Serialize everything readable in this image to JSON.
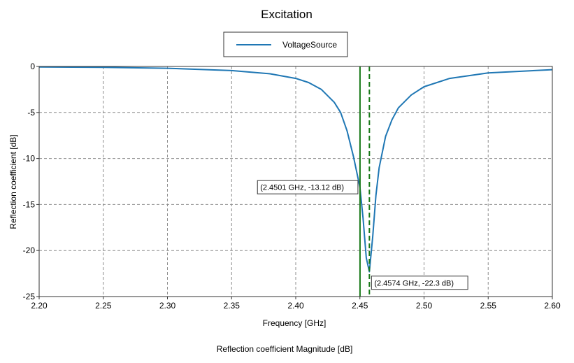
{
  "chart_data": {
    "type": "line",
    "title": "Excitation",
    "xlabel": "Frequency [GHz]",
    "ylabel": "Reflection coefficient [dB]",
    "footer": "Reflection coefficient Magnitude [dB]",
    "xlim": [
      2.2,
      2.6
    ],
    "ylim": [
      -25,
      0
    ],
    "xticks": [
      "2.20",
      "2.25",
      "2.30",
      "2.35",
      "2.40",
      "2.45",
      "2.50",
      "2.55",
      "2.60"
    ],
    "yticks": [
      "0",
      "-5",
      "-10",
      "-15",
      "-20",
      "-25"
    ],
    "grid": true,
    "legend": "top-center",
    "series": [
      {
        "name": "VoltageSource",
        "color": "#1f77b4",
        "x": [
          2.2,
          2.25,
          2.3,
          2.35,
          2.38,
          2.4,
          2.41,
          2.42,
          2.43,
          2.435,
          2.44,
          2.445,
          2.45,
          2.4525,
          2.455,
          2.4574,
          2.46,
          2.4625,
          2.465,
          2.47,
          2.475,
          2.48,
          2.49,
          2.5,
          2.52,
          2.55,
          2.6
        ],
        "y": [
          -0.05,
          -0.1,
          -0.2,
          -0.45,
          -0.8,
          -1.3,
          -1.75,
          -2.5,
          -3.9,
          -5.0,
          -7.0,
          -9.8,
          -13.12,
          -16.5,
          -20.8,
          -22.3,
          -18.5,
          -14.0,
          -11.0,
          -7.6,
          -5.8,
          -4.5,
          -3.1,
          -2.2,
          -1.3,
          -0.7,
          -0.35
        ]
      }
    ],
    "markers": [
      {
        "x": 2.4501,
        "style": "solid",
        "color": "#1a7a1a",
        "label": "(2.4501 GHz, -13.12 dB)"
      },
      {
        "x": 2.4574,
        "style": "dashed",
        "color": "#1a7a1a",
        "label": "(2.4574 GHz, -22.3 dB)"
      }
    ]
  }
}
